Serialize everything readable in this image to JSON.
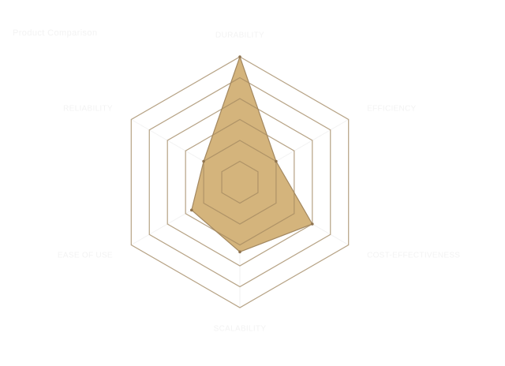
{
  "chart_data": {
    "type": "radar",
    "title": "Product Comparison",
    "axes": [
      "Durability",
      "Efficiency",
      "Cost-Effectiveness",
      "Scalability",
      "Ease of Use",
      "Reliability"
    ],
    "series": [
      {
        "values": [
          9,
          3,
          6,
          5,
          4,
          3
        ]
      }
    ],
    "range": [
      0,
      9
    ],
    "grid_levels": 6,
    "grid": true,
    "legend": "none",
    "colors": {
      "fill": "#d4b47c",
      "stroke": "#a38860",
      "grid": "#f2f2f2",
      "label": "#f3f3f3"
    }
  }
}
